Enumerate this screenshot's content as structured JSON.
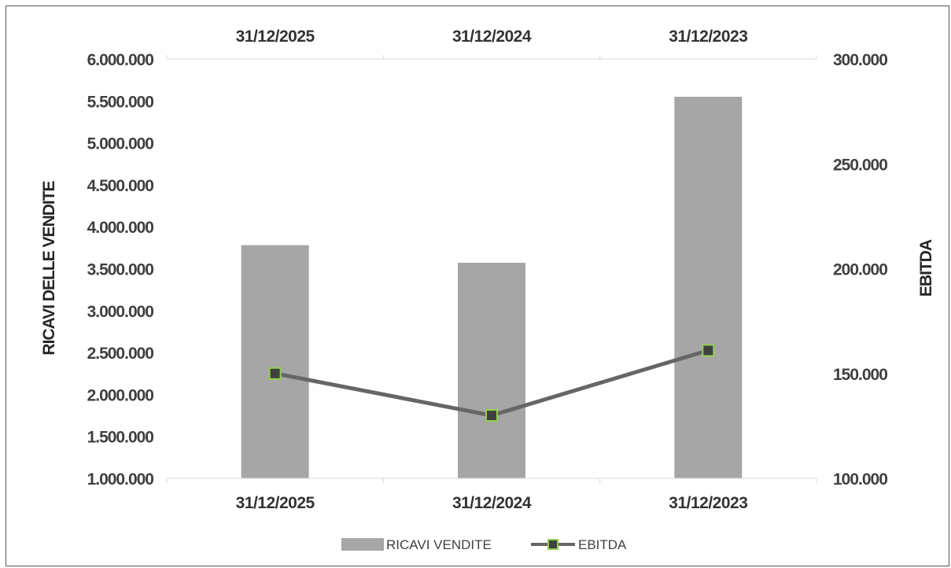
{
  "chart_data": {
    "type": "bar",
    "categories": [
      "31/12/2025",
      "31/12/2024",
      "31/12/2023"
    ],
    "series": [
      {
        "name": "RICAVI VENDITE",
        "type": "bar",
        "axis": "left",
        "values": [
          3780000,
          3570000,
          5550000
        ],
        "color": "#a6a6a6"
      },
      {
        "name": "EBITDA",
        "type": "line",
        "axis": "right",
        "values": [
          150000,
          130000,
          161000
        ],
        "color": "#666666",
        "marker_fill": "#404040",
        "marker_border": "#92d050"
      }
    ],
    "ylabel": "RICAVI DELLE VENDITE",
    "y2label": "EBITDA",
    "ylim": [
      1000000,
      6000000
    ],
    "y2lim": [
      100000,
      300000
    ],
    "yticks": [
      "1.000.000",
      "1.500.000",
      "2.000.000",
      "2.500.000",
      "3.000.000",
      "3.500.000",
      "4.000.000",
      "4.500.000",
      "5.000.000",
      "5.500.000",
      "6.000.000"
    ],
    "y2ticks": [
      "100.000",
      "150.000",
      "200.000",
      "250.000",
      "300.000"
    ],
    "legend_position": "bottom",
    "grid": false,
    "top_categories": true
  }
}
